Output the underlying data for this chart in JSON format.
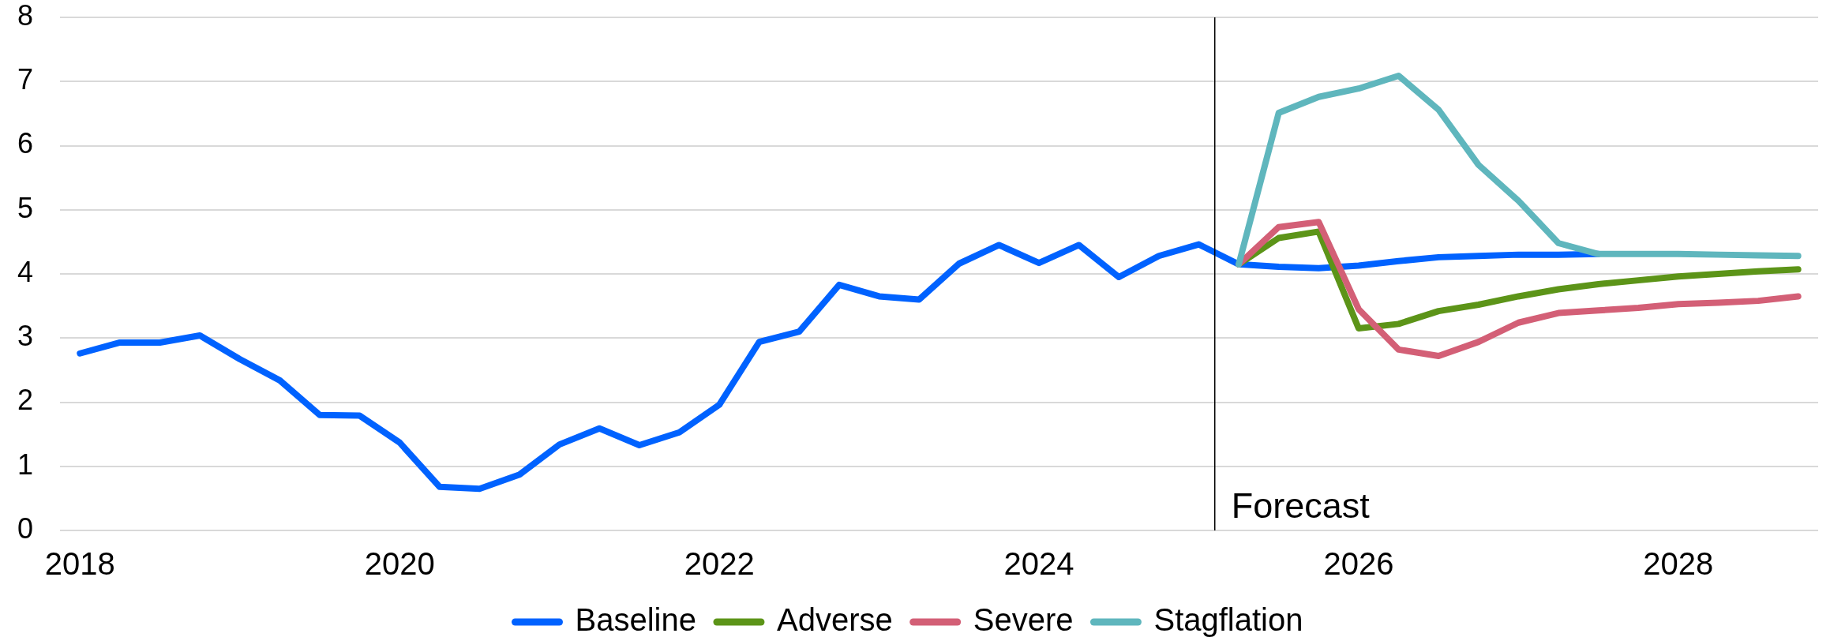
{
  "chart_data": {
    "type": "line",
    "x": [
      2018,
      2018.25,
      2018.5,
      2018.75,
      2019,
      2019.25,
      2019.5,
      2019.75,
      2020,
      2020.25,
      2020.5,
      2020.75,
      2021,
      2021.25,
      2021.5,
      2021.75,
      2022,
      2022.25,
      2022.5,
      2022.75,
      2023,
      2023.25,
      2023.5,
      2023.75,
      2024,
      2024.25,
      2024.5,
      2024.75,
      2025,
      2025.25,
      2025.5,
      2025.75,
      2026,
      2026.25,
      2026.5,
      2026.75,
      2027,
      2027.25,
      2027.5,
      2027.75,
      2028,
      2028.25,
      2028.5,
      2028.75
    ],
    "xlim": [
      2017.875,
      2028.875
    ],
    "xticks": [
      2018,
      2020,
      2022,
      2024,
      2026,
      2028
    ],
    "ylim": [
      0,
      8
    ],
    "yticks": [
      0,
      1,
      2,
      3,
      4,
      5,
      6,
      7,
      8
    ],
    "grid": "y",
    "legend": "bottom",
    "marker": "none",
    "line_style": "solid",
    "ref_lines": [
      {
        "axis": "x",
        "value": 2025.1,
        "label": "Forecast",
        "color": "#000000"
      }
    ],
    "series": [
      {
        "name": "Baseline",
        "color": "#0062ff",
        "values": [
          2.76,
          2.93,
          2.93,
          3.04,
          2.67,
          2.34,
          1.8,
          1.79,
          1.37,
          0.68,
          0.65,
          0.87,
          1.34,
          1.59,
          1.33,
          1.53,
          1.96,
          2.94,
          3.1,
          3.83,
          3.65,
          3.6,
          4.16,
          4.45,
          4.17,
          4.45,
          3.95,
          4.28,
          4.46,
          4.15,
          4.11,
          4.09,
          4.13,
          4.2,
          4.26,
          4.28,
          4.3,
          4.3,
          4.31,
          null,
          null,
          null,
          null,
          null
        ]
      },
      {
        "name": "Adverse",
        "color": "#5c9418",
        "values": [
          null,
          null,
          null,
          null,
          null,
          null,
          null,
          null,
          null,
          null,
          null,
          null,
          null,
          null,
          null,
          null,
          null,
          null,
          null,
          null,
          null,
          null,
          null,
          null,
          null,
          null,
          null,
          null,
          null,
          4.15,
          4.56,
          4.66,
          3.15,
          3.22,
          3.42,
          3.52,
          3.65,
          3.76,
          3.84,
          3.9,
          3.96,
          4.0,
          4.04,
          4.07
        ]
      },
      {
        "name": "Severe",
        "color": "#d35f76",
        "values": [
          null,
          null,
          null,
          null,
          null,
          null,
          null,
          null,
          null,
          null,
          null,
          null,
          null,
          null,
          null,
          null,
          null,
          null,
          null,
          null,
          null,
          null,
          null,
          null,
          null,
          null,
          null,
          null,
          null,
          4.15,
          4.73,
          4.81,
          3.45,
          2.82,
          2.72,
          2.94,
          3.24,
          3.39,
          3.43,
          3.47,
          3.53,
          3.55,
          3.58,
          3.65
        ]
      },
      {
        "name": "Stagflation",
        "color": "#5fb6bd",
        "values": [
          null,
          null,
          null,
          null,
          null,
          null,
          null,
          null,
          null,
          null,
          null,
          null,
          null,
          null,
          null,
          null,
          null,
          null,
          null,
          null,
          null,
          null,
          null,
          null,
          null,
          null,
          null,
          null,
          null,
          4.15,
          6.51,
          6.76,
          6.89,
          7.09,
          6.56,
          5.7,
          5.14,
          4.48,
          4.31,
          4.31,
          4.31,
          4.3,
          4.29,
          4.28
        ]
      }
    ]
  }
}
